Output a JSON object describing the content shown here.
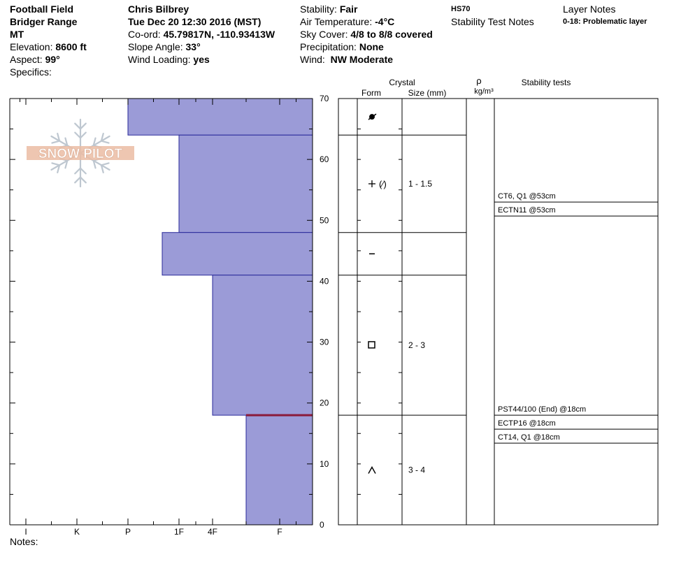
{
  "site": {
    "name": "Football Field",
    "range": "Bridger Range",
    "state": "MT",
    "elevation_label": "Elevation:",
    "elevation": "8600 ft",
    "aspect_label": "Aspect:",
    "aspect": "99°",
    "specifics_label": "Specifics:"
  },
  "observer": {
    "name": "Chris Bilbrey",
    "datetime": "Tue Dec 20 12:30 2016 (MST)",
    "coord_label": "Co-ord:",
    "coord": "45.79817N, -110.93413W",
    "slope_label": "Slope Angle:",
    "slope": "33°",
    "wind_loading_label": "Wind Loading:",
    "wind_loading": "yes"
  },
  "conditions": {
    "stability_label": "Stability:",
    "stability": "Fair",
    "air_temp_label": "Air Temperature:",
    "air_temp": "-4°C",
    "sky_label": "Sky Cover:",
    "sky": "4/8 to 8/8 covered",
    "precip_label": "Precipitation:",
    "precip": "None",
    "wind_label": "Wind:",
    "wind": "NW Moderate"
  },
  "hs": "HS70",
  "stability_test_notes_label": "Stability Test Notes",
  "layer_notes_label": "Layer Notes",
  "layer_notes": "0-18: Problematic layer",
  "watermark": "SNOW PILOT",
  "notes_label": "Notes:",
  "columns": {
    "crystal": "Crystal",
    "form": "Form",
    "size": "Size (mm)",
    "rho": "ρ",
    "density_unit": "kg/m³",
    "stability_tests": "Stability tests"
  },
  "chart_data": {
    "type": "bar",
    "orientation": "horizontal",
    "y_axis": {
      "label": "",
      "range": [
        0,
        70
      ],
      "ticks": [
        0,
        10,
        20,
        30,
        40,
        50,
        60,
        70
      ]
    },
    "x_axis": {
      "categories": [
        "I",
        "K",
        "P",
        "1F",
        "4F",
        "F"
      ],
      "reversed": true
    },
    "layers": [
      {
        "bottom": 64,
        "top": 70,
        "hardness": "P"
      },
      {
        "bottom": 48,
        "top": 64,
        "hardness": "1F"
      },
      {
        "bottom": 41,
        "top": 48,
        "hardness": "P-1F"
      },
      {
        "bottom": 18,
        "top": 41,
        "hardness": "4F"
      },
      {
        "bottom": 0,
        "top": 18,
        "hardness": "F+"
      }
    ],
    "crystals": [
      {
        "bottom": 64,
        "top": 70,
        "form": "graupel",
        "size": ""
      },
      {
        "bottom": 48,
        "top": 64,
        "form": "precip-decomposing",
        "size": "1 - 1.5"
      },
      {
        "bottom": 41,
        "top": 48,
        "form": "rounded",
        "size": ""
      },
      {
        "bottom": 18,
        "top": 41,
        "form": "faceted",
        "size": "2 - 3"
      },
      {
        "bottom": 0,
        "top": 18,
        "form": "depth-hoar",
        "size": "3 - 4"
      }
    ],
    "problem_layer_height": 18,
    "stability_tests": [
      {
        "group": 53,
        "tests": [
          "CT6, Q1 @53cm",
          "ECTN11 @53cm"
        ]
      },
      {
        "group": 18,
        "tests": [
          "PST44/100 (End) @18cm",
          "ECTP16 @18cm",
          "CT14, Q1 @18cm"
        ]
      }
    ]
  },
  "colors": {
    "layer_fill": "#9b9bd7",
    "layer_stroke": "#2a2a9a",
    "problem_line": "#8b1a3a",
    "grid": "#000000"
  }
}
